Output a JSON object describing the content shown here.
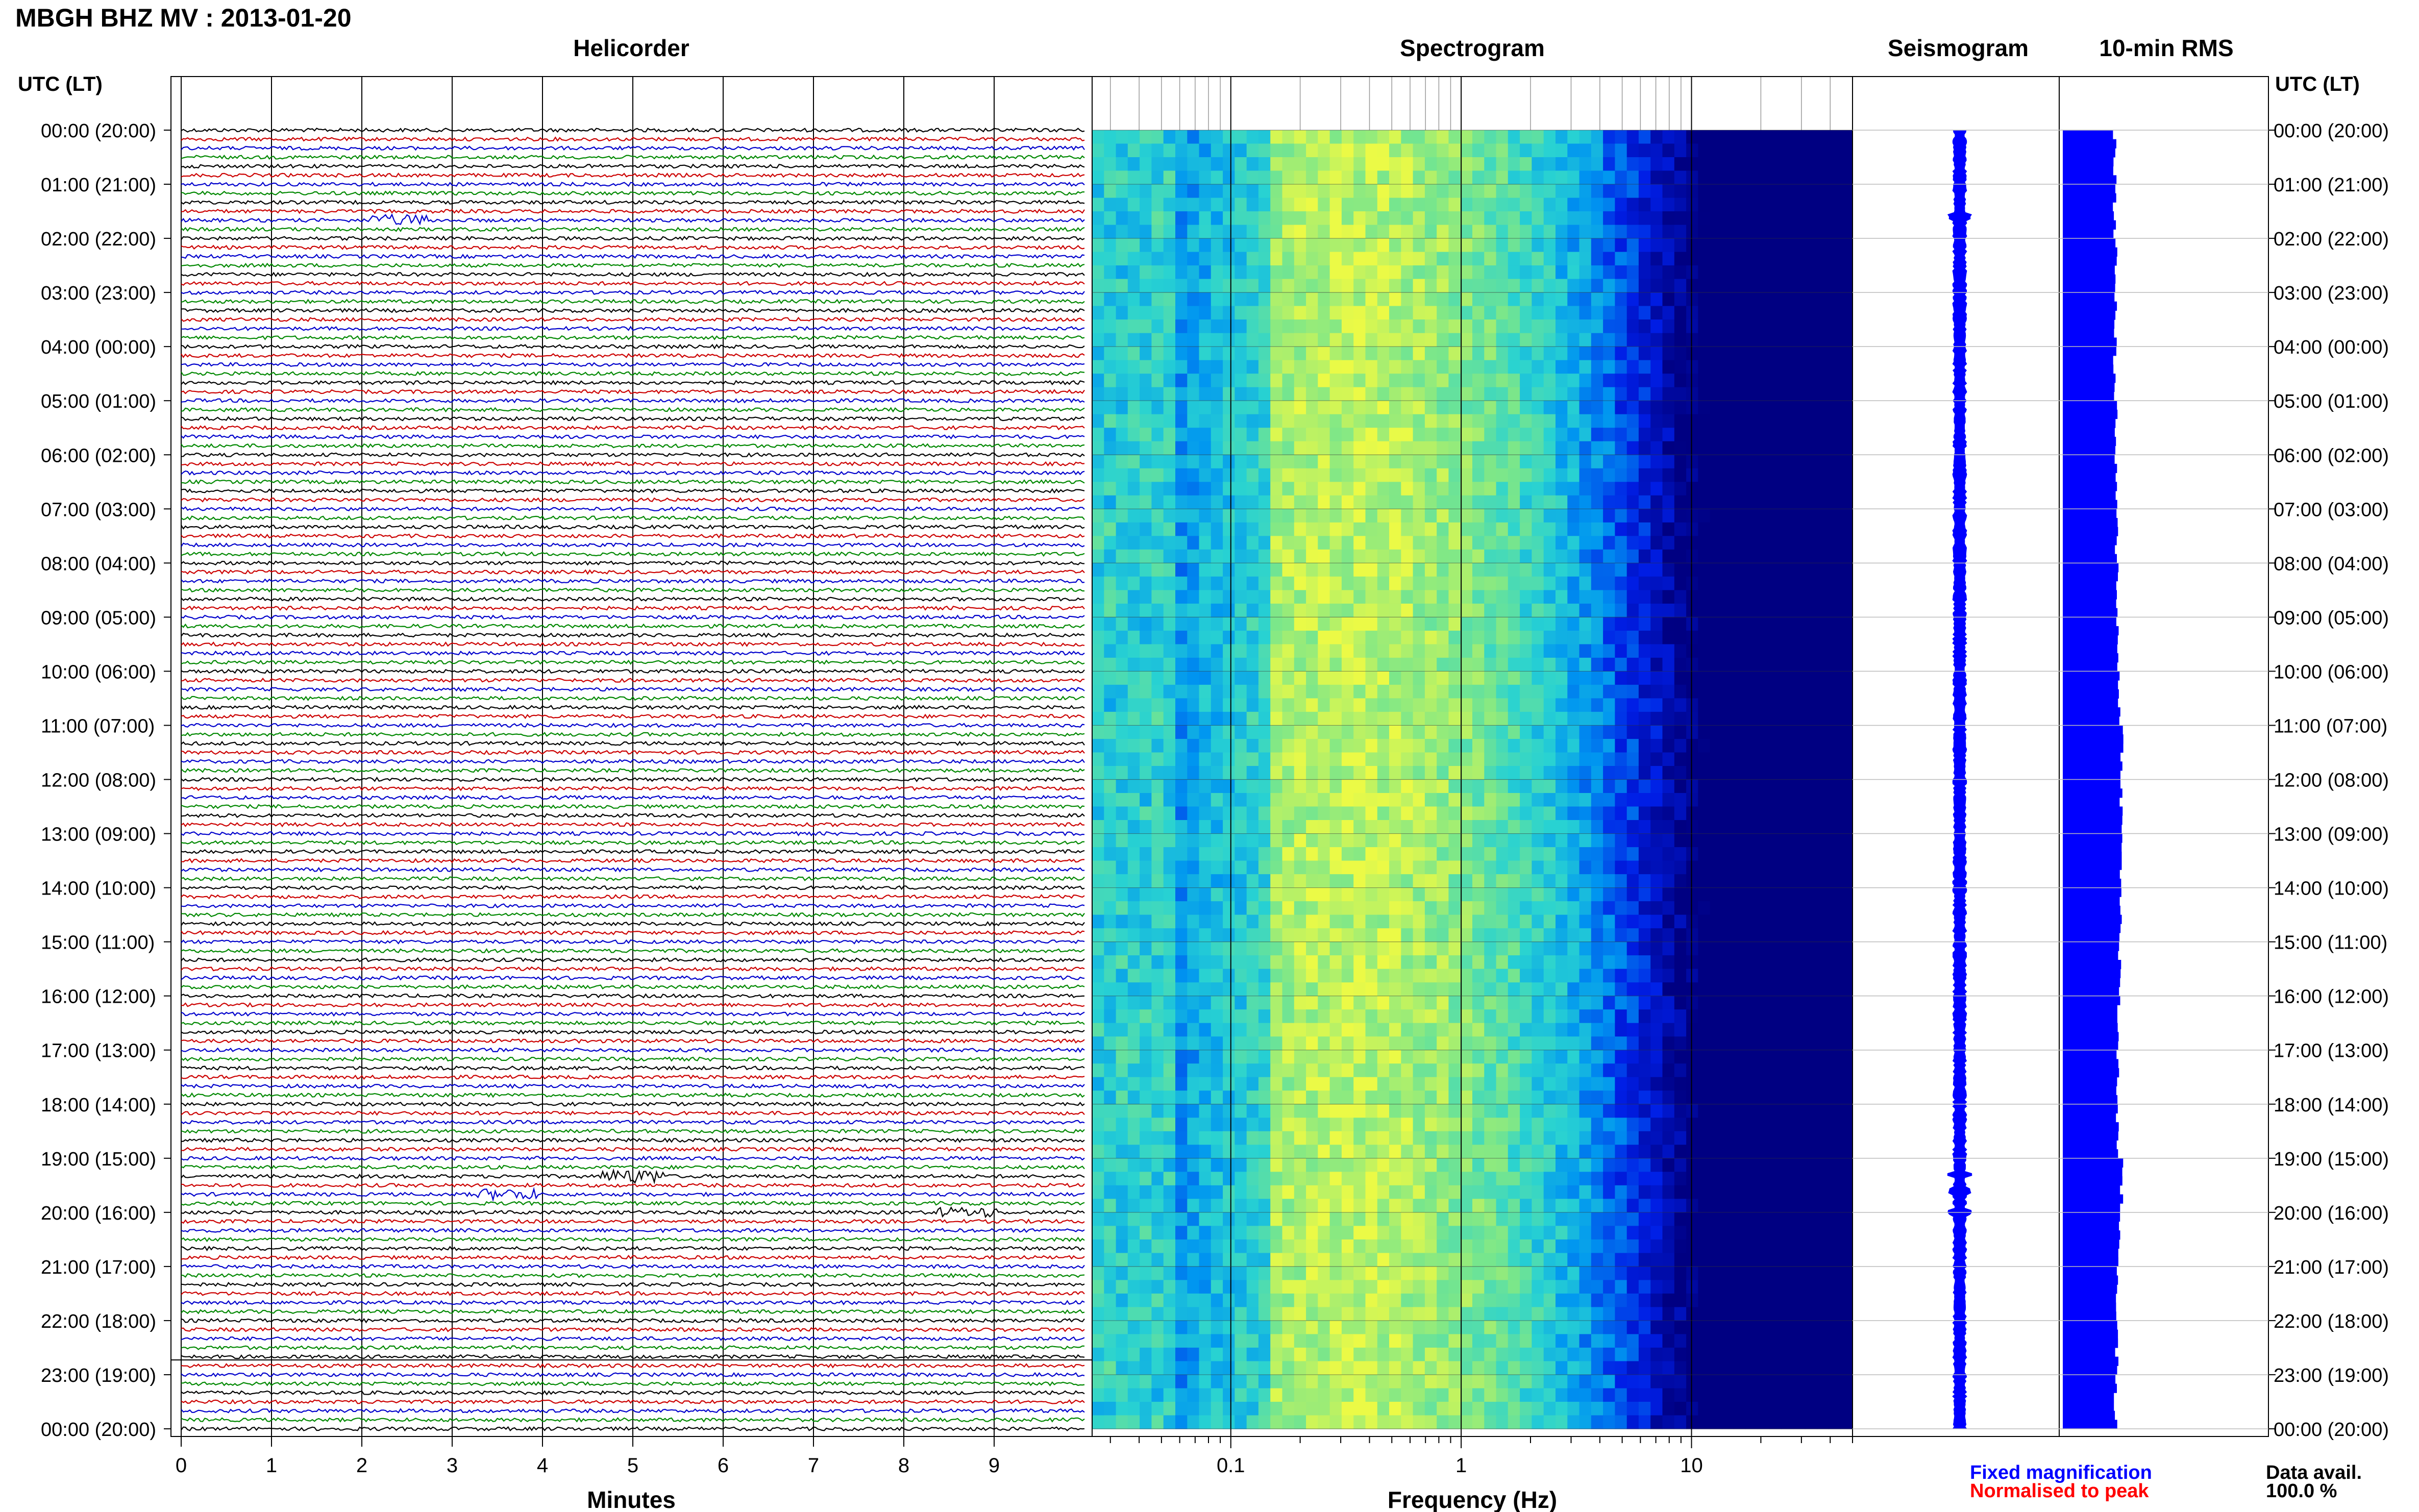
{
  "header": {
    "station_title": "MBGH BHZ MV : 2013-01-20",
    "left_time_label": "UTC (LT)",
    "right_time_label": "UTC (LT)"
  },
  "panels": {
    "helicorder": "Helicorder",
    "spectrogram": "Spectrogram",
    "seismogram": "Seismogram",
    "rms": "10-min RMS"
  },
  "legend": {
    "fixed": "Fixed magnification",
    "normalised": "Normalised to peak",
    "fixed_color": "#0000ff",
    "normalised_color": "#ff0000"
  },
  "data_avail": {
    "label": "Data avail.",
    "value": "100.0 %"
  },
  "colors": {
    "trace_cycle": [
      "#000000",
      "#cc0000",
      "#0000cc",
      "#008800"
    ],
    "seismogram_fill": "#0000ff",
    "rms_fill": "#0000ff",
    "spectrogram_low": "#000080",
    "spectrogram_high": "#f0ff40"
  },
  "chart_data": [
    {
      "type": "line",
      "title": "Helicorder",
      "xlabel": "Minutes",
      "xlim": [
        0,
        10
      ],
      "x_ticks": [
        "0",
        "1",
        "2",
        "3",
        "4",
        "5",
        "6",
        "7",
        "8",
        "9"
      ],
      "hour_labels": [
        "00:00 (20:00)",
        "01:00 (21:00)",
        "02:00 (22:00)",
        "03:00 (23:00)",
        "04:00 (00:00)",
        "05:00 (01:00)",
        "06:00 (02:00)",
        "07:00 (03:00)",
        "08:00 (04:00)",
        "09:00 (05:00)",
        "10:00 (06:00)",
        "11:00 (07:00)",
        "12:00 (08:00)",
        "13:00 (09:00)",
        "14:00 (10:00)",
        "15:00 (11:00)",
        "16:00 (12:00)",
        "17:00 (13:00)",
        "18:00 (14:00)",
        "19:00 (15:00)",
        "20:00 (16:00)",
        "21:00 (17:00)",
        "22:00 (18:00)",
        "23:00 (19:00)",
        "00:00 (20:00)"
      ],
      "traces_per_hour": 6,
      "events": [
        {
          "hour": 1.6,
          "minute": 2.4,
          "amp": 2.0
        },
        {
          "hour": 19.3,
          "minute": 5.0,
          "amp": 2.5
        },
        {
          "hour": 19.6,
          "minute": 3.6,
          "amp": 2.0
        },
        {
          "hour": 20.0,
          "minute": 8.7,
          "amp": 1.8
        }
      ]
    },
    {
      "type": "heatmap",
      "title": "Spectrogram",
      "xlabel": "Frequency (Hz)",
      "xscale": "log",
      "xlim": [
        0.025,
        50
      ],
      "x_ticks": [
        "0.1",
        "1",
        "10"
      ],
      "ylim": [
        0,
        24
      ]
    },
    {
      "type": "area",
      "title": "Seismogram",
      "ylim": [
        0,
        24
      ]
    },
    {
      "type": "bar",
      "title": "10-min RMS",
      "ylim": [
        0,
        24
      ],
      "values_per_hour": [
        0.55,
        0.55,
        0.56,
        0.56,
        0.55,
        0.56,
        0.56,
        0.57,
        0.58,
        0.58,
        0.6,
        0.63,
        0.62,
        0.62,
        0.61,
        0.6,
        0.59,
        0.58,
        0.58,
        0.62,
        0.6,
        0.58,
        0.57,
        0.56
      ]
    }
  ]
}
